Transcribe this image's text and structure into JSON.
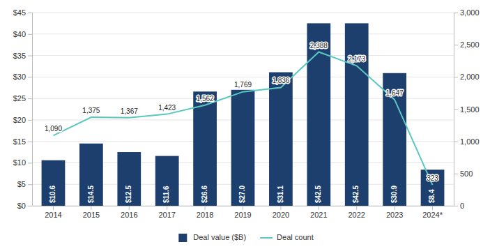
{
  "chart_data": {
    "type": "bar",
    "categories": [
      "2014",
      "2015",
      "2016",
      "2017",
      "2018",
      "2019",
      "2020",
      "2021",
      "2022",
      "2023",
      "2024*"
    ],
    "series": [
      {
        "name": "Deal value ($B)",
        "type": "bar",
        "color": "#1c3f6e",
        "data_labels": true,
        "values": [
          10.6,
          14.5,
          12.5,
          11.6,
          26.6,
          27.0,
          31.1,
          42.5,
          42.5,
          30.9,
          8.4
        ],
        "value_labels": [
          "$10.6",
          "$14.5",
          "$12.5",
          "$11.6",
          "$26.6",
          "$27.0",
          "$31.1",
          "$42.5",
          "$42.5",
          "$30.9",
          "$8.4"
        ]
      },
      {
        "name": "Deal count",
        "type": "line",
        "axis": "y2",
        "color": "#5bc8c0",
        "data_labels": true,
        "values": [
          1090,
          1375,
          1367,
          1423,
          1562,
          1769,
          1836,
          2388,
          2173,
          1647,
          323
        ],
        "value_labels": [
          "1,090",
          "1,375",
          "1,367",
          "1,423",
          "1,562",
          "1,769",
          "1,836",
          "2,388",
          "2,173",
          "1,647",
          "323"
        ]
      }
    ],
    "ylim": [
      0,
      45
    ],
    "yticks": [
      {
        "value": 0,
        "label": "$0"
      },
      {
        "value": 5,
        "label": "$5"
      },
      {
        "value": 10,
        "label": "$10"
      },
      {
        "value": 15,
        "label": "$15"
      },
      {
        "value": 20,
        "label": "$20"
      },
      {
        "value": 25,
        "label": "$25"
      },
      {
        "value": 30,
        "label": "$30"
      },
      {
        "value": 35,
        "label": "$35"
      },
      {
        "value": 40,
        "label": "$40"
      },
      {
        "value": 45,
        "label": "$45"
      }
    ],
    "y2lim": [
      0,
      3000
    ],
    "y2ticks": [
      0,
      500,
      {
        "value": 1000,
        "label": "1,000"
      },
      {
        "value": 1500,
        "label": "1,500"
      },
      {
        "value": 2000,
        "label": "2,000"
      },
      {
        "value": 2500,
        "label": "2,500"
      },
      {
        "value": 3000,
        "label": "3,000"
      }
    ],
    "grid": true,
    "legend": "bottom"
  }
}
